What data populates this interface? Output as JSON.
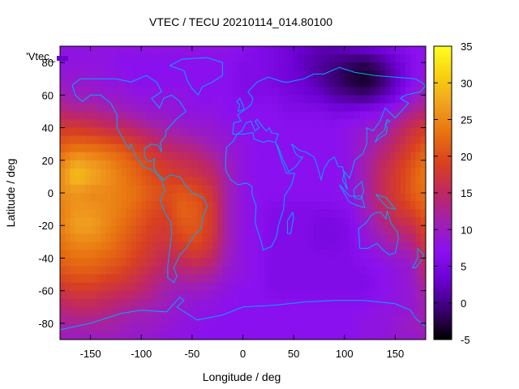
{
  "chart_data": {
    "type": "heatmap",
    "title": "VTEC / TECU 20210114_014.80100",
    "xlabel": "Longitude / deg",
    "ylabel": "Latitude / deg",
    "legend_label": "'Vtec_",
    "xlim": [
      -180,
      180
    ],
    "ylim": [
      -90,
      90
    ],
    "x_ticks": [
      -150,
      -100,
      -50,
      0,
      50,
      100,
      150
    ],
    "y_ticks": [
      -80,
      -60,
      -40,
      -20,
      0,
      20,
      40,
      60,
      80
    ],
    "colorbar": {
      "range": [
        -5,
        35
      ],
      "ticks": [
        35,
        30,
        25,
        20,
        15,
        10,
        5,
        0,
        -5
      ]
    },
    "colormap": [
      "#000000",
      "#3a0070",
      "#6a00d0",
      "#8a10f0",
      "#a020b0",
      "#c02860",
      "#d84020",
      "#e87010",
      "#f0a020",
      "#f8d010",
      "#ffff20"
    ],
    "grid": false,
    "longitudes": [
      -180,
      -165,
      -150,
      -135,
      -120,
      -105,
      -90,
      -75,
      -60,
      -45,
      -30,
      -15,
      0,
      15,
      30,
      45,
      60,
      75,
      90,
      105,
      120,
      135,
      150,
      165,
      180
    ],
    "latitudes": [
      90,
      80,
      70,
      60,
      50,
      40,
      30,
      20,
      10,
      0,
      -10,
      -20,
      -30,
      -40,
      -50,
      -60,
      -70,
      -80,
      -90
    ],
    "vtec": [
      [
        8,
        8,
        8,
        8,
        8,
        8,
        8,
        8,
        8,
        8,
        8,
        8,
        7,
        6,
        5,
        4,
        3,
        2,
        2,
        3,
        4,
        5,
        6,
        7,
        8
      ],
      [
        8,
        8,
        8,
        8,
        7,
        7,
        7,
        7,
        7,
        7,
        7,
        7,
        6,
        6,
        5,
        4,
        2,
        1,
        0,
        -1,
        -2,
        0,
        3,
        6,
        8
      ],
      [
        9,
        9,
        9,
        8,
        8,
        7,
        7,
        7,
        7,
        7,
        7,
        7,
        6,
        6,
        5,
        4,
        3,
        1,
        -1,
        -3,
        -4,
        -2,
        2,
        6,
        9
      ],
      [
        11,
        10,
        10,
        9,
        9,
        8,
        8,
        8,
        8,
        7,
        7,
        7,
        6,
        6,
        6,
        5,
        4,
        3,
        1,
        0,
        -1,
        1,
        4,
        8,
        11
      ],
      [
        14,
        13,
        13,
        12,
        11,
        10,
        9,
        9,
        8,
        8,
        8,
        7,
        7,
        7,
        7,
        6,
        6,
        6,
        5,
        5,
        6,
        7,
        9,
        12,
        14
      ],
      [
        18,
        18,
        17,
        16,
        15,
        14,
        12,
        11,
        10,
        9,
        9,
        8,
        7,
        7,
        7,
        7,
        7,
        7,
        7,
        8,
        9,
        10,
        13,
        16,
        18
      ],
      [
        21,
        22,
        22,
        21,
        20,
        18,
        16,
        14,
        13,
        12,
        10,
        9,
        8,
        7,
        7,
        7,
        7,
        7,
        7,
        8,
        10,
        12,
        15,
        18,
        21
      ],
      [
        24,
        27,
        26,
        25,
        23,
        21,
        19,
        17,
        16,
        15,
        13,
        10,
        8,
        7,
        7,
        7,
        7,
        7,
        7,
        8,
        11,
        14,
        17,
        20,
        23
      ],
      [
        25,
        30,
        28,
        26,
        24,
        22,
        20,
        19,
        18,
        17,
        15,
        11,
        8,
        7,
        7,
        7,
        7,
        7,
        7,
        8,
        11,
        15,
        18,
        21,
        24
      ],
      [
        25,
        26,
        25,
        25,
        24,
        23,
        21,
        20,
        21,
        20,
        17,
        11,
        8,
        7,
        7,
        7,
        7,
        7,
        7,
        8,
        11,
        15,
        18,
        21,
        23
      ],
      [
        24,
        26,
        26,
        25,
        24,
        22,
        20,
        19,
        22,
        21,
        18,
        11,
        8,
        7,
        6,
        6,
        6,
        6,
        6,
        7,
        10,
        14,
        17,
        19,
        22
      ],
      [
        24,
        27,
        27,
        25,
        23,
        21,
        19,
        18,
        21,
        21,
        18,
        11,
        8,
        7,
        6,
        6,
        6,
        5,
        5,
        6,
        9,
        12,
        15,
        16,
        20
      ],
      [
        23,
        25,
        25,
        24,
        22,
        20,
        18,
        17,
        19,
        20,
        17,
        11,
        8,
        7,
        6,
        6,
        6,
        5,
        5,
        6,
        8,
        10,
        12,
        13,
        18
      ],
      [
        22,
        23,
        23,
        22,
        21,
        19,
        17,
        15,
        16,
        17,
        15,
        10,
        8,
        7,
        6,
        6,
        6,
        6,
        6,
        6,
        7,
        8,
        9,
        10,
        16
      ],
      [
        20,
        21,
        21,
        20,
        19,
        17,
        15,
        13,
        13,
        13,
        12,
        9,
        8,
        7,
        6,
        6,
        6,
        6,
        6,
        6,
        6,
        7,
        8,
        9,
        14
      ],
      [
        17,
        18,
        18,
        17,
        16,
        15,
        13,
        11,
        10,
        10,
        9,
        8,
        7,
        7,
        6,
        6,
        6,
        6,
        6,
        6,
        6,
        7,
        8,
        9,
        12
      ],
      [
        14,
        15,
        15,
        14,
        13,
        12,
        11,
        10,
        9,
        8,
        8,
        7,
        7,
        7,
        7,
        7,
        7,
        7,
        7,
        7,
        7,
        8,
        8,
        9,
        11
      ],
      [
        12,
        12,
        12,
        12,
        11,
        10,
        10,
        9,
        8,
        8,
        7,
        7,
        7,
        7,
        7,
        7,
        7,
        7,
        7,
        7,
        8,
        8,
        9,
        10,
        11
      ],
      [
        10,
        10,
        10,
        10,
        10,
        9,
        9,
        8,
        8,
        7,
        7,
        7,
        7,
        7,
        7,
        7,
        7,
        7,
        7,
        7,
        8,
        8,
        9,
        9,
        10
      ]
    ]
  }
}
